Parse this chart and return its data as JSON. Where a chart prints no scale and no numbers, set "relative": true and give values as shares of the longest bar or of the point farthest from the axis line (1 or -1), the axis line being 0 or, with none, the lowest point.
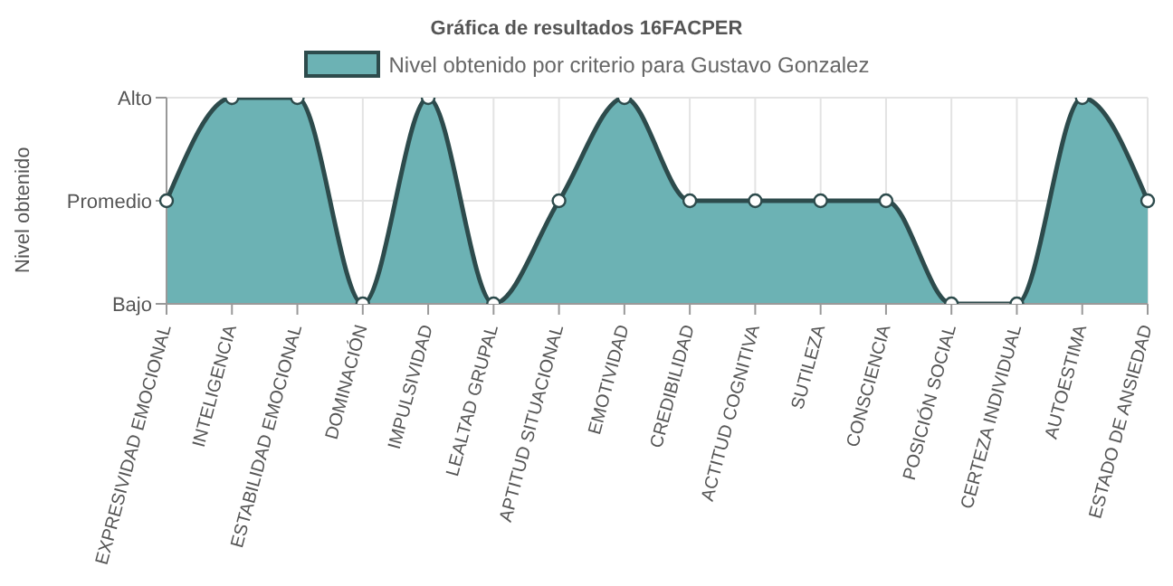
{
  "chart_data": {
    "type": "area",
    "title": "Gráfica de resultados 16FACPER",
    "ylabel": "Nivel obtenido",
    "categories": [
      "EXPRESIVIDAD EMOCIONAL",
      "INTELIGENCIA",
      "ESTABILIDAD EMOCIONAL",
      "DOMINACIÓN",
      "IMPULSIVIDAD",
      "LEALTAD GRUPAL",
      "APTITUD SITUACIONAL",
      "EMOTIVIDAD",
      "CREDIBILIDAD",
      "ACTITUD COGNITIVA",
      "SUTILEZA",
      "CONSCIENCIA",
      "POSICIÓN SOCIAL",
      "CERTEZA INDIVIDUAL",
      "AUTOESTIMA",
      "ESTADO DE ANSIEDAD"
    ],
    "series": [
      {
        "name": "Nivel obtenido por criterio para Gustavo Gonzalez",
        "color": "#6cb2b4",
        "values": [
          0.5,
          1,
          1,
          0,
          1,
          0,
          0.5,
          1,
          0.5,
          0.5,
          0.5,
          0.5,
          0,
          0,
          1,
          0.5
        ]
      }
    ],
    "relative": true,
    "annotations": [
      "Bajo",
      "Promedio",
      "Alto"
    ],
    "grid": true,
    "legend": "top",
    "marker": "circle"
  }
}
